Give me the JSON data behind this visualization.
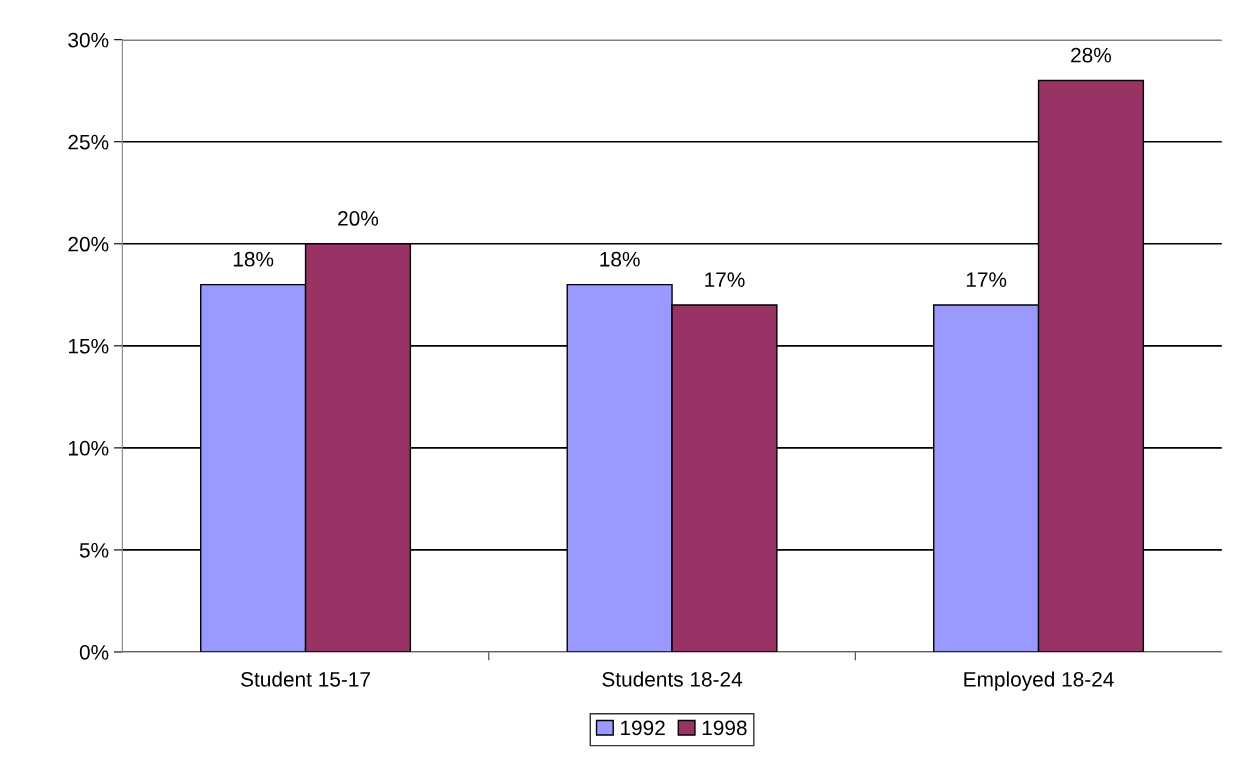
{
  "chart_data": {
    "type": "bar",
    "categories": [
      "Student 15-17",
      "Students 18-24",
      "Employed 18-24"
    ],
    "series": [
      {
        "name": "1992",
        "color": "#9999ff",
        "values": [
          18,
          18,
          17
        ],
        "value_labels": [
          "18%",
          "18%",
          "17%"
        ]
      },
      {
        "name": "1998",
        "color": "#993366",
        "values": [
          20,
          17,
          28
        ],
        "value_labels": [
          "20%",
          "17%",
          "28%"
        ]
      }
    ],
    "ylim": [
      0,
      30
    ],
    "yticks": [
      {
        "value": 0,
        "label": "0%"
      },
      {
        "value": 5,
        "label": "5%"
      },
      {
        "value": 10,
        "label": "10%"
      },
      {
        "value": 15,
        "label": "15%"
      },
      {
        "value": 20,
        "label": "20%"
      },
      {
        "value": 25,
        "label": "25%"
      },
      {
        "value": 30,
        "label": "30%"
      }
    ],
    "grid": "y",
    "legend": "bottom"
  }
}
